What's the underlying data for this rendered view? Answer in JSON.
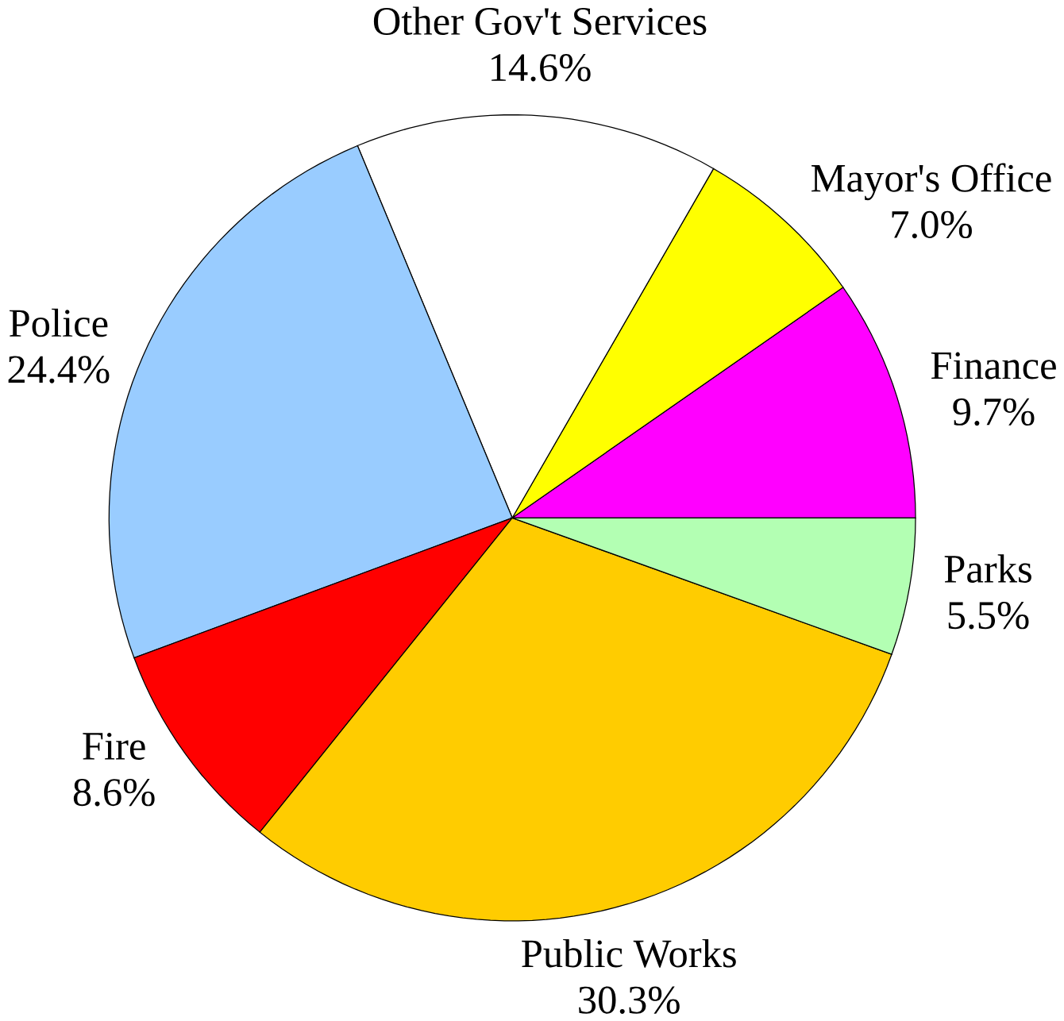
{
  "chart_data": {
    "type": "pie",
    "categories": [
      "Finance",
      "Mayor's Office",
      "Other Gov't Services",
      "Police",
      "Fire",
      "Public Works",
      "Parks"
    ],
    "values": [
      9.7,
      7.0,
      14.6,
      24.4,
      8.6,
      30.3,
      5.5
    ],
    "value_labels": [
      "9.7%",
      "7.0%",
      "14.6%",
      "24.4%",
      "8.6%",
      "30.3%",
      "5.5%"
    ],
    "colors": [
      "#ff00ff",
      "#ffff00",
      "#ffffff",
      "#99ccff",
      "#ff0000",
      "#ffcc00",
      "#b3ffb3"
    ]
  }
}
